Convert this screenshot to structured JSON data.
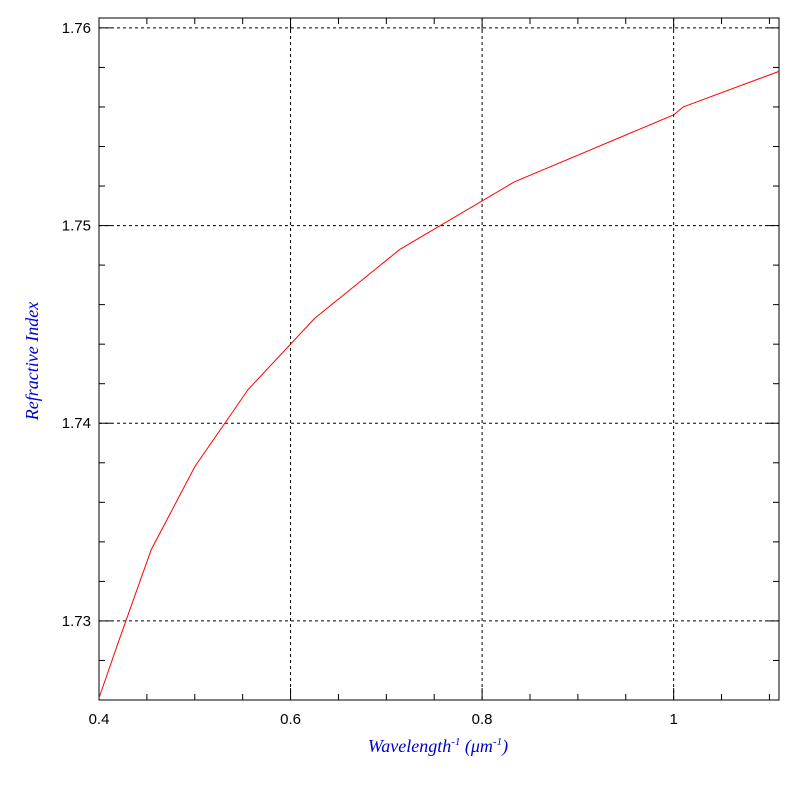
{
  "chart_data": {
    "type": "line",
    "title": "",
    "xlabel": {
      "text": "Wavelength",
      "sup1": "-1",
      "mid": " (μm",
      "sup2": "-1",
      "end": ")"
    },
    "ylabel": "Refractive Index",
    "xlim": [
      0.4,
      1.11
    ],
    "ylim": [
      1.726,
      1.7605
    ],
    "x_ticks": [
      0.4,
      0.6,
      0.8,
      1.0
    ],
    "x_tick_labels": [
      "0.4",
      "0.6",
      "0.8",
      "1"
    ],
    "y_ticks": [
      1.73,
      1.74,
      1.75,
      1.76
    ],
    "y_tick_labels": [
      "1.73",
      "1.74",
      "1.75",
      "1.76"
    ],
    "grid": true,
    "series": [
      {
        "color": "#ff0000",
        "x": [
          0.4,
          0.42,
          0.4545,
          0.5,
          0.5556,
          0.625,
          0.7143,
          0.8333,
          1.0,
          1.01,
          1.11
        ],
        "y": [
          1.7261,
          1.7289,
          1.7336,
          1.7378,
          1.7417,
          1.7453,
          1.7488,
          1.7522,
          1.7556,
          1.756,
          1.7578
        ]
      }
    ],
    "colors": {
      "axis_title": "#0000cc",
      "grid": "#000000",
      "line": "#ff0000"
    }
  }
}
